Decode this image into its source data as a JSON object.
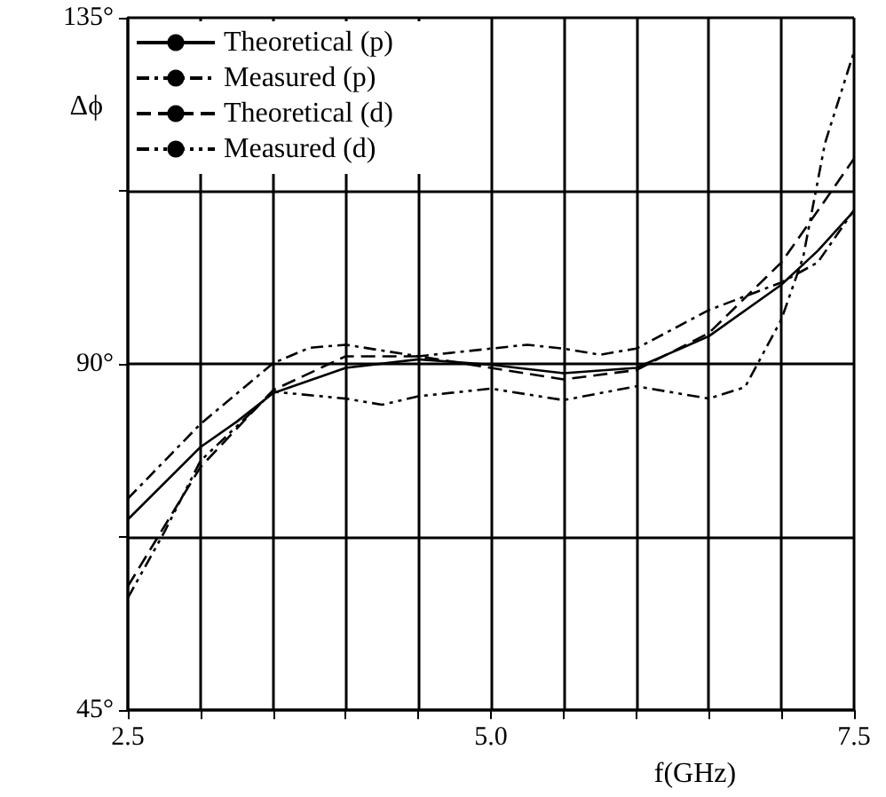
{
  "chart_data": {
    "type": "line",
    "xlabel": "f(GHz)",
    "ylabel": "Δϕ",
    "xlim": [
      2.5,
      7.5
    ],
    "xticks": [
      2.5,
      {
        "value": 3.0,
        "label": null
      },
      {
        "value": 3.5,
        "label": null
      },
      {
        "value": 4.0,
        "label": null
      },
      {
        "value": 4.5,
        "label": null
      },
      "5.0",
      {
        "value": 5.5,
        "label": null
      },
      {
        "value": 6.0,
        "label": null
      },
      {
        "value": 6.5,
        "label": null
      },
      {
        "value": 7.0,
        "label": null
      },
      7.5
    ],
    "ylim": [
      45,
      135
    ],
    "yticks": [
      {
        "value": 45,
        "label": "45°"
      },
      {
        "value": 67.5,
        "label": null
      },
      {
        "value": 90,
        "label": "90°"
      },
      {
        "value": 112.5,
        "label": null
      },
      {
        "value": 135,
        "label": "135°"
      }
    ],
    "grid": true,
    "legend": "top left",
    "series": [
      {
        "name": "Theoretical (p)",
        "color": "#000000",
        "line_style": "solid",
        "x": [
          2.5,
          3.0,
          3.25,
          3.5,
          4.0,
          4.5,
          5.0,
          5.5,
          6.0,
          6.5,
          7.0,
          7.25,
          7.5
        ],
        "values": [
          69.8,
          79.2,
          82.5,
          86.2,
          89.5,
          90.6,
          89.9,
          88.8,
          89.5,
          93.6,
          100.3,
          104.7,
          109.9
        ]
      },
      {
        "name": "Measured (p)",
        "color": "#000000",
        "line_style": "dashdot",
        "x": [
          2.5,
          3.0,
          3.5,
          3.75,
          4.0,
          4.5,
          5.0,
          5.25,
          5.5,
          5.75,
          6.0,
          6.5,
          6.75,
          7.0,
          7.25,
          7.5
        ],
        "values": [
          72.5,
          82.2,
          90.1,
          92.1,
          92.5,
          91.0,
          92.0,
          92.5,
          92.0,
          91.2,
          92.0,
          97.0,
          98.8,
          100.6,
          103.2,
          110.0
        ]
      },
      {
        "name": "Theoretical (d)",
        "color": "#000000",
        "line_style": "dashed",
        "x": [
          2.5,
          3.0,
          3.5,
          4.0,
          4.5,
          5.0,
          5.5,
          6.0,
          6.5,
          7.0,
          7.25,
          7.5
        ],
        "values": [
          61.1,
          76.6,
          86.6,
          91.0,
          91.0,
          89.5,
          88.0,
          89.2,
          94.0,
          103.2,
          109.9,
          116.7
        ]
      },
      {
        "name": "Measured (d)",
        "color": "#000000",
        "line_style": "dashdotdot",
        "x": [
          2.5,
          2.75,
          3.0,
          3.5,
          4.0,
          4.25,
          4.5,
          5.0,
          5.5,
          6.0,
          6.5,
          6.75,
          7.0,
          7.15,
          7.3,
          7.5
        ],
        "values": [
          59.6,
          68.1,
          77.4,
          86.4,
          85.5,
          84.7,
          85.8,
          86.8,
          85.3,
          87.1,
          85.5,
          87.0,
          95.8,
          103.9,
          118.7,
          130.6
        ]
      }
    ]
  }
}
